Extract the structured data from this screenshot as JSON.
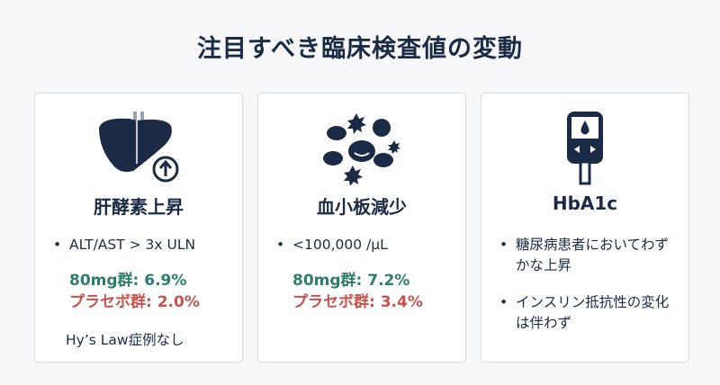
{
  "title": "注目すべき臨床検査値の変動",
  "colors": {
    "navy": "#1c2b45",
    "green": "#2e7d6b",
    "red": "#c9524d"
  },
  "cards": [
    {
      "icon": "liver-arrow-up-icon",
      "title": "肝酵素上昇",
      "bullets": [
        "ALT/AST > 3x ULN"
      ],
      "active": "80mg群: 6.9%",
      "placebo": "プラセボ群: 2.0%",
      "note": "Hy’s Law症例なし"
    },
    {
      "icon": "blood-cells-icon",
      "title": "血小板減少",
      "bullets": [
        "<100,000 /µL"
      ],
      "active": "80mg群: 7.2%",
      "placebo": "プラセボ群: 3.4%"
    },
    {
      "icon": "glucose-meter-icon",
      "title": "HbA1c",
      "bullets": [
        "糖尿病患者においてわずかな上昇",
        "インスリン抵抗性の変化は伴わず"
      ]
    }
  ]
}
